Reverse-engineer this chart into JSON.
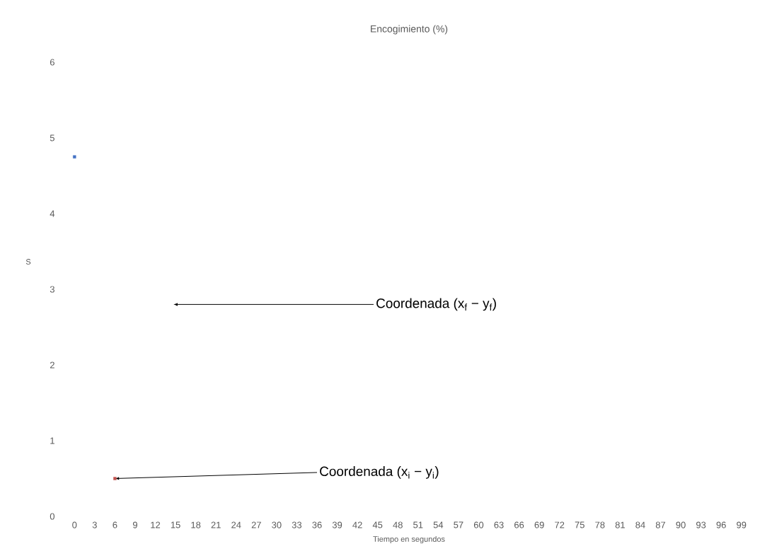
{
  "chart_data": {
    "type": "scatter",
    "title": "Encogimiento (%)",
    "xlabel": "Tiempo en segundos",
    "ylabel": "S",
    "categories": [
      "0",
      "3",
      "6",
      "9",
      "12",
      "15",
      "18",
      "21",
      "24",
      "27",
      "30",
      "33",
      "36",
      "39",
      "42",
      "45",
      "48",
      "51",
      "54",
      "57",
      "60",
      "63",
      "66",
      "69",
      "72",
      "75",
      "78",
      "81",
      "84",
      "87",
      "90",
      "93",
      "96",
      "99"
    ],
    "series": [
      {
        "color": "#4472c4",
        "values": [
          4.75,
          null,
          null,
          null,
          null,
          null,
          null,
          null,
          null,
          null,
          null,
          null,
          null,
          null,
          null,
          null,
          null,
          null,
          null,
          null,
          null,
          null,
          null,
          null,
          null,
          null,
          null,
          null,
          null,
          null,
          null,
          null,
          null,
          null
        ]
      },
      {
        "color": "#c0504d",
        "values": [
          null,
          null,
          0.5,
          null,
          null,
          null,
          null,
          null,
          null,
          null,
          null,
          null,
          null,
          null,
          null,
          null,
          null,
          null,
          null,
          null,
          null,
          null,
          null,
          null,
          null,
          null,
          null,
          null,
          null,
          null,
          null,
          null,
          null,
          null
        ]
      }
    ],
    "ylim": [
      0,
      6
    ],
    "yticks": [
      0,
      1,
      2,
      3,
      4,
      5,
      6
    ],
    "grid": false,
    "marker": "square",
    "annotations": [
      "Coordenada (x$_{f}$ − y$_{f}$)",
      {
        "text": "Coordenada (x$_{i}$ − y$_{i}$)",
        "x": "6",
        "y": 0.5
      }
    ]
  }
}
